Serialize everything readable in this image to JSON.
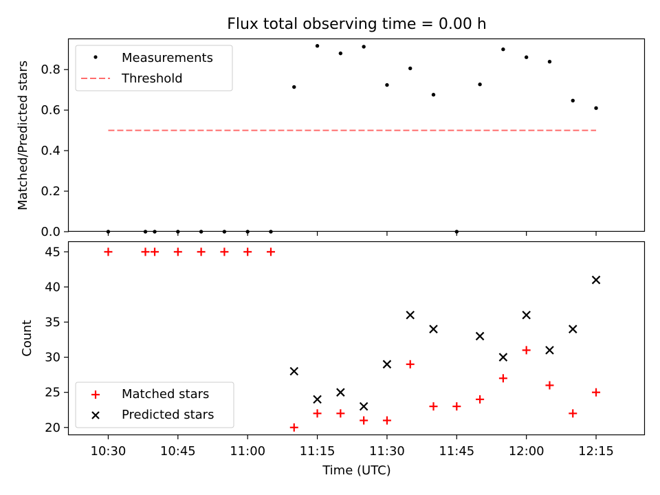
{
  "title": "Flux total observing time = 0.00 h",
  "colors": {
    "measurement": "#000000",
    "threshold": "#ff6b6b",
    "matched": "#ff0000",
    "predicted": "#000000"
  },
  "chart_data": [
    {
      "type": "scatter",
      "ylabel": "Matched/Predicted stars",
      "ylim": [
        0.0,
        0.95
      ],
      "yticks": [
        "0.0",
        "0.2",
        "0.4",
        "0.6",
        "0.8"
      ],
      "grid": false,
      "legend": "top-left",
      "series": [
        {
          "name": "Measurements",
          "style": "dot",
          "x": [
            "10:30",
            "10:38",
            "10:40",
            "10:45",
            "10:50",
            "10:55",
            "11:00",
            "11:05",
            "11:10",
            "11:15",
            "11:20",
            "11:25",
            "11:30",
            "11:35",
            "11:40",
            "11:45",
            "11:50",
            "11:55",
            "12:00",
            "12:05",
            "12:10",
            "12:15"
          ],
          "values": [
            0.0,
            0.0,
            0.0,
            0.0,
            0.0,
            0.0,
            0.0,
            0.0,
            0.714,
            0.917,
            0.88,
            0.913,
            0.724,
            0.806,
            0.676,
            0.0,
            0.727,
            0.9,
            0.861,
            0.839,
            0.647,
            0.61
          ]
        },
        {
          "name": "Threshold",
          "style": "dashed-line",
          "x": [
            "10:30",
            "12:15"
          ],
          "values": [
            0.5,
            0.5
          ]
        }
      ]
    },
    {
      "type": "scatter",
      "xlabel": "Time (UTC)",
      "ylabel": "Count",
      "ylim": [
        18.9,
        46.4
      ],
      "yticks": [
        "20",
        "25",
        "30",
        "35",
        "40",
        "45"
      ],
      "xticks": [
        "10:30",
        "10:45",
        "11:00",
        "11:15",
        "11:30",
        "11:45",
        "12:00",
        "12:15"
      ],
      "grid": false,
      "legend": "bottom-left",
      "series": [
        {
          "name": "Matched stars",
          "style": "plus",
          "x": [
            "10:30",
            "10:38",
            "10:40",
            "10:45",
            "10:50",
            "10:55",
            "11:00",
            "11:05",
            "11:10",
            "11:15",
            "11:20",
            "11:25",
            "11:30",
            "11:35",
            "11:40",
            "11:45",
            "11:50",
            "11:55",
            "12:00",
            "12:05",
            "12:10",
            "12:15"
          ],
          "values": [
            45,
            45,
            45,
            45,
            45,
            45,
            45,
            45,
            20,
            22,
            22,
            21,
            21,
            29,
            23,
            23,
            24,
            27,
            31,
            26,
            22,
            25
          ]
        },
        {
          "name": "Predicted stars",
          "style": "x",
          "x": [
            "11:10",
            "11:15",
            "11:20",
            "11:25",
            "11:30",
            "11:35",
            "11:40",
            "11:50",
            "11:55",
            "12:00",
            "12:05",
            "12:10",
            "12:15"
          ],
          "values": [
            28,
            24,
            25,
            23,
            29,
            36,
            34,
            33,
            30,
            36,
            31,
            34,
            41
          ]
        }
      ]
    }
  ]
}
